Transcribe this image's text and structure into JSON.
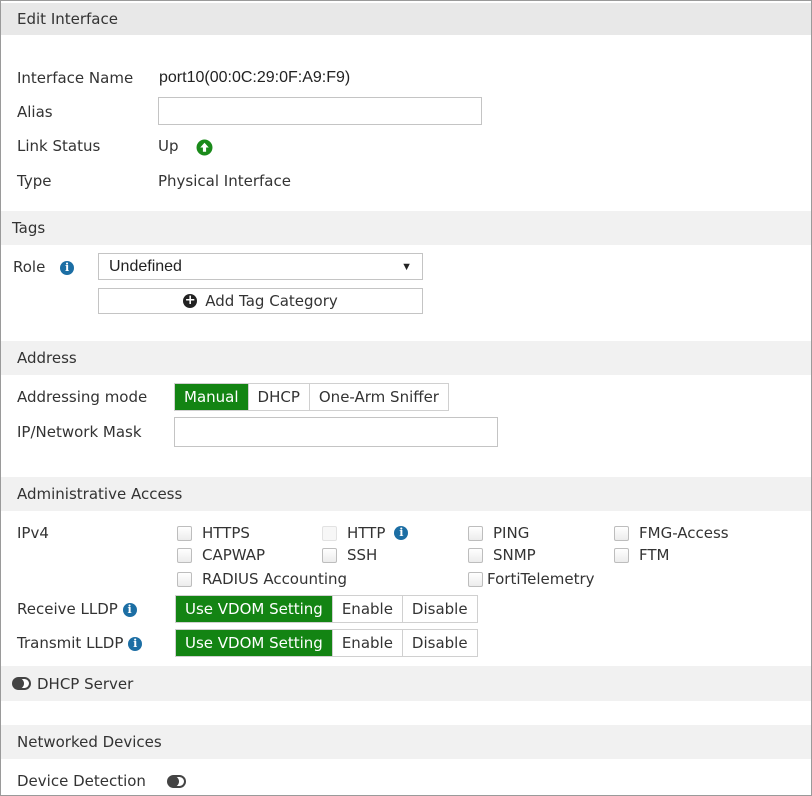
{
  "header": {
    "title": "Edit Interface"
  },
  "interface": {
    "name_label": "Interface Name",
    "name_value": "port10(00:0C:29:0F:A9:F9)",
    "alias_label": "Alias",
    "alias_value": "",
    "link_status_label": "Link Status",
    "link_status_value": "Up",
    "link_status_icon": "arrow-up-circle-icon",
    "link_status_color": "#1a8a1a",
    "type_label": "Type",
    "type_value": "Physical Interface"
  },
  "tags": {
    "title": "Tags",
    "role_label": "Role",
    "role_value": "Undefined",
    "add_tag_label": "Add Tag Category"
  },
  "address": {
    "title": "Address",
    "mode_label": "Addressing mode",
    "modes": [
      "Manual",
      "DHCP",
      "One-Arm Sniffer"
    ],
    "selected_mode": "Manual",
    "ip_label": "IP/Network Mask",
    "ip_value": ""
  },
  "admin": {
    "title": "Administrative Access",
    "ipv4_label": "IPv4",
    "options": [
      {
        "label": "HTTPS",
        "checked": false
      },
      {
        "label": "HTTP",
        "checked": false,
        "disabled": true
      },
      {
        "label": "PING",
        "checked": false
      },
      {
        "label": "FMG-Access",
        "checked": false
      },
      {
        "label": "CAPWAP",
        "checked": false
      },
      {
        "label": "SSH",
        "checked": false
      },
      {
        "label": "SNMP",
        "checked": false
      },
      {
        "label": "FTM",
        "checked": false
      },
      {
        "label": "RADIUS Accounting",
        "checked": false
      },
      {
        "label": "FortiTelemetry",
        "checked": false
      }
    ],
    "receive_lldp_label": "Receive LLDP",
    "transmit_lldp_label": "Transmit LLDP",
    "lldp_options": [
      "Use VDOM Setting",
      "Enable",
      "Disable"
    ],
    "receive_lldp_value": "Use VDOM Setting",
    "transmit_lldp_value": "Use VDOM Setting"
  },
  "dhcp": {
    "label": "DHCP Server",
    "enabled": false
  },
  "networked": {
    "title": "Networked Devices",
    "detection_label": "Device Detection",
    "detection_enabled": false
  },
  "colors": {
    "accent": "#138413",
    "info": "#1c6ea4"
  }
}
